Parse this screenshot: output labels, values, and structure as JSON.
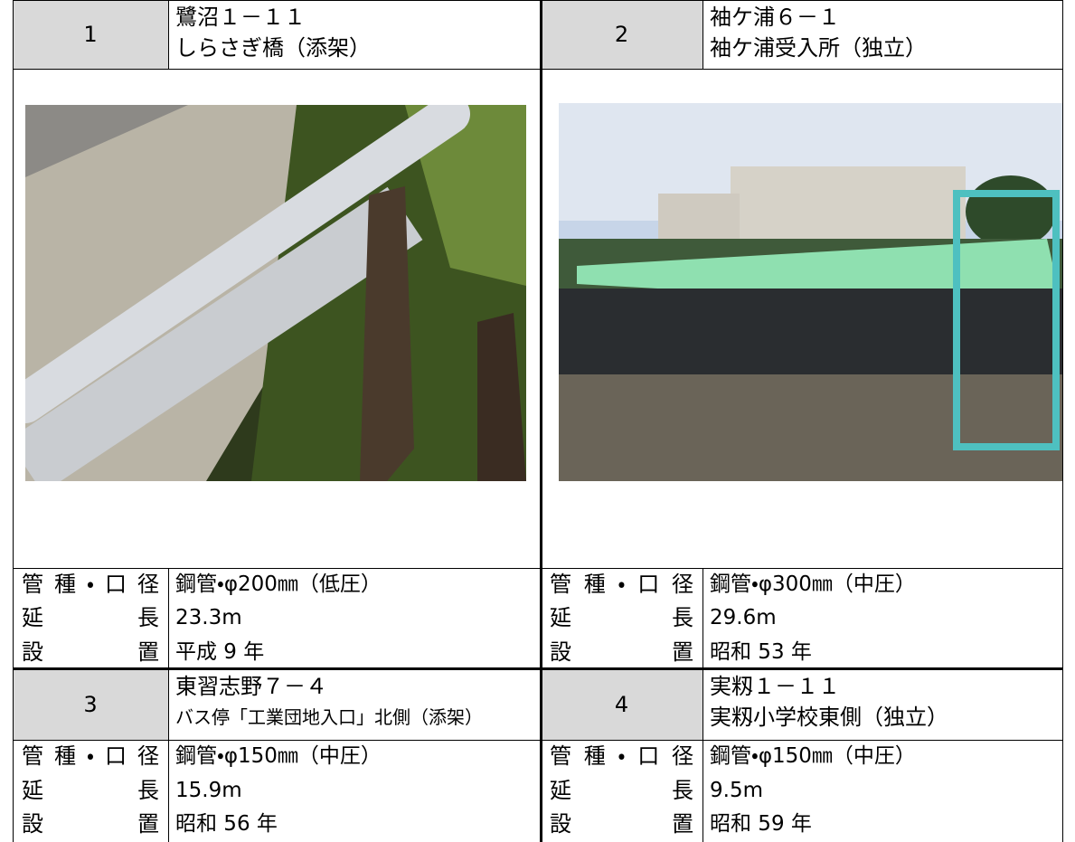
{
  "entries": [
    {
      "number": "1",
      "address": "鷺沼１－１１",
      "name": "しらさぎ橋（添架）",
      "fields": [
        {
          "label": "管種・口径",
          "value": "鋼管・φ200㎜（低圧）"
        },
        {
          "label": "延長",
          "value": "23.3m"
        },
        {
          "label": "設置",
          "value": "平成 9 年"
        }
      ]
    },
    {
      "number": "2",
      "address": "袖ケ浦６－１",
      "name": "袖ケ浦受入所（独立）",
      "fields": [
        {
          "label": "管種・口径",
          "value": "鋼管・φ300㎜（中圧）"
        },
        {
          "label": "延長",
          "value": "29.6m"
        },
        {
          "label": "設置",
          "value": "昭和 53 年"
        }
      ]
    },
    {
      "number": "3",
      "address": "東習志野７－４",
      "name": "バス停「工業団地入口」北側（添架）",
      "fields": [
        {
          "label": "管種・口径",
          "value": "鋼管・φ150㎜（中圧）"
        },
        {
          "label": "延長",
          "value": "15.9m"
        },
        {
          "label": "設置",
          "value": "昭和 56 年"
        }
      ]
    },
    {
      "number": "4",
      "address": "実籾１－１１",
      "name": "実籾小学校東側（独立）",
      "fields": [
        {
          "label": "管種・口径",
          "value": "鋼管・φ150㎜（中圧）"
        },
        {
          "label": "延長",
          "value": "9.5m"
        },
        {
          "label": "設置",
          "value": "昭和 59 年"
        }
      ]
    }
  ]
}
